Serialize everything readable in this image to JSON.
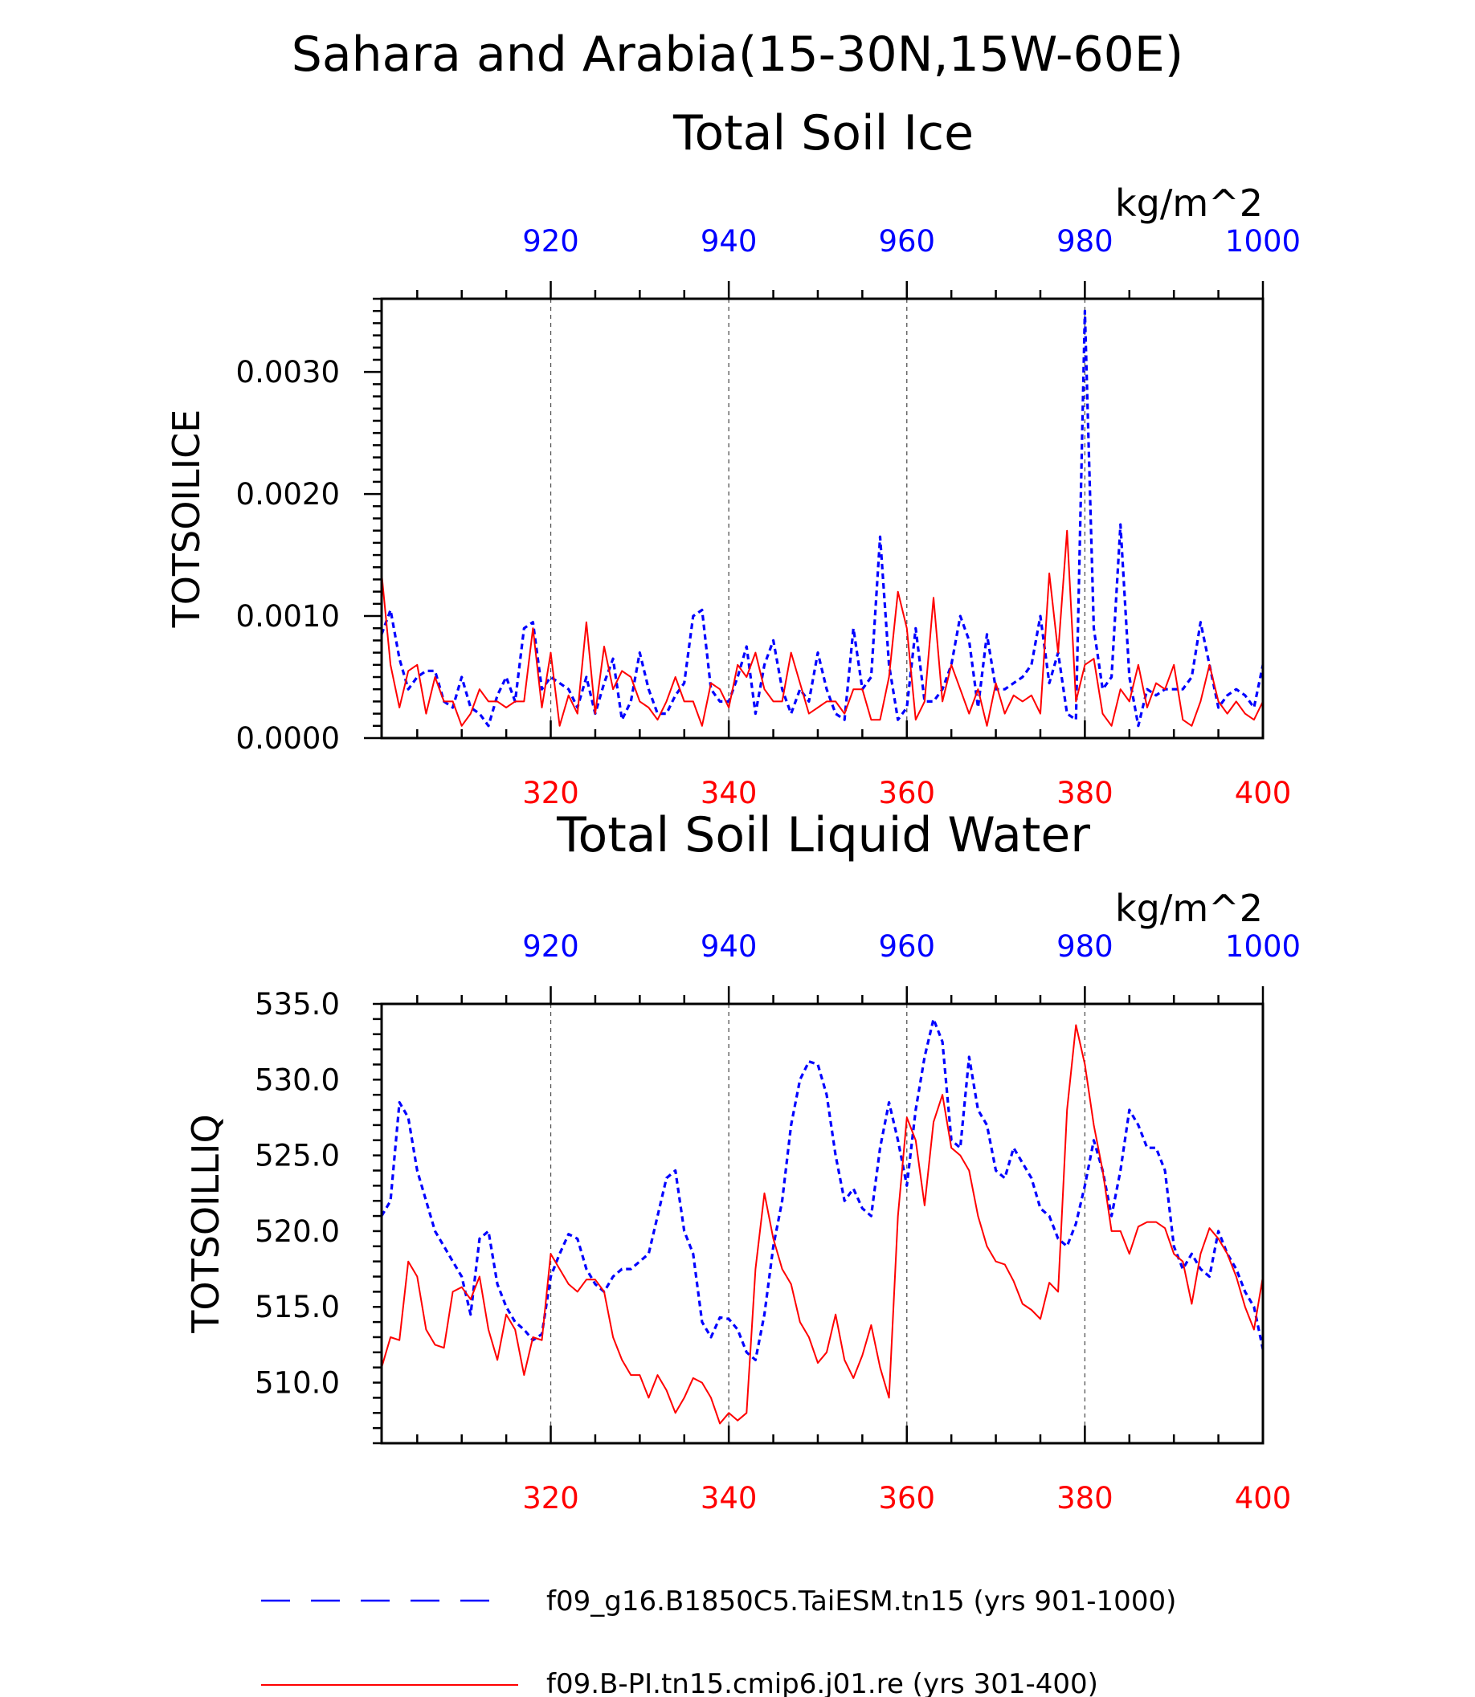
{
  "figure": {
    "title_line1": "Sahara and Arabia(15-30N,15W-60E)",
    "colors": {
      "case_a": "#0000ff",
      "case_b": "#ff0000",
      "grid": "#555555"
    }
  },
  "chart_data": [
    {
      "type": "line",
      "title": "Total Soil Ice",
      "units": "kg/m^2",
      "ylabel": "TOTSOILICE",
      "ylim": [
        0,
        0.0036
      ],
      "ytick_labels": [
        "0.0000",
        "0.0010",
        "0.0020",
        "0.0030"
      ],
      "x_bottom": {
        "range": [
          301,
          400
        ],
        "tick_labels": [
          "320",
          "340",
          "360",
          "380",
          "400"
        ],
        "color": "#ff0000"
      },
      "x_top": {
        "range": [
          901,
          1000
        ],
        "tick_labels": [
          "920",
          "940",
          "960",
          "980",
          "1000"
        ],
        "color": "#0000ff"
      },
      "grid": "vertical dashed at 320, 340, 360, 380",
      "series": [
        {
          "name": "f09_g16.B1850C5.TaiESM.tn15 (yrs 901-1000)",
          "axis": "top",
          "style": "dashed",
          "color": "#0000ff",
          "x_start": 901,
          "values": [
            0.00085,
            0.00105,
            0.00065,
            0.0004,
            0.0005,
            0.00055,
            0.00055,
            0.0003,
            0.00025,
            0.0005,
            0.00025,
            0.0002,
            0.0001,
            0.00035,
            0.0005,
            0.0003,
            0.0009,
            0.00095,
            0.0004,
            0.0005,
            0.00045,
            0.0004,
            0.00025,
            0.0005,
            0.0002,
            0.00045,
            0.00065,
            0.00015,
            0.0003,
            0.0007,
            0.0004,
            0.0002,
            0.0002,
            0.00035,
            0.00045,
            0.001,
            0.00105,
            0.0004,
            0.0003,
            0.0003,
            0.0005,
            0.00075,
            0.0002,
            0.0006,
            0.0008,
            0.0004,
            0.0002,
            0.0004,
            0.0003,
            0.0007,
            0.0004,
            0.0002,
            0.00015,
            0.0009,
            0.0004,
            0.0005,
            0.00165,
            0.0006,
            0.00015,
            0.00025,
            0.0009,
            0.0003,
            0.0003,
            0.0004,
            0.0006,
            0.001,
            0.0008,
            0.00025,
            0.00085,
            0.0004,
            0.0004,
            0.00045,
            0.0005,
            0.0006,
            0.001,
            0.00045,
            0.0007,
            0.0002,
            0.00015,
            0.0035,
            0.0009,
            0.0004,
            0.0005,
            0.00175,
            0.0005,
            0.0001,
            0.0004,
            0.00035,
            0.0004,
            0.0004,
            0.0004,
            0.0005,
            0.00095,
            0.0006,
            0.00025,
            0.00035,
            0.0004,
            0.00035,
            0.00025,
            0.0006
          ]
        },
        {
          "name": "f09.B-PI.tn15.cmip6.j01.re (yrs 301-400)",
          "axis": "bottom",
          "style": "solid",
          "color": "#ff0000",
          "x_start": 301,
          "values": [
            0.00135,
            0.0006,
            0.00025,
            0.00055,
            0.0006,
            0.0002,
            0.0005,
            0.0003,
            0.0003,
            0.0001,
            0.0002,
            0.0004,
            0.0003,
            0.0003,
            0.00025,
            0.0003,
            0.0003,
            0.0009,
            0.00025,
            0.0007,
            0.0001,
            0.00035,
            0.0002,
            0.00095,
            0.0002,
            0.00075,
            0.0004,
            0.00055,
            0.0005,
            0.0003,
            0.00025,
            0.00015,
            0.0003,
            0.0005,
            0.0003,
            0.0003,
            0.0001,
            0.00045,
            0.0004,
            0.00025,
            0.0006,
            0.0005,
            0.0007,
            0.0004,
            0.0003,
            0.0003,
            0.0007,
            0.00045,
            0.0002,
            0.00025,
            0.0003,
            0.0003,
            0.0002,
            0.0004,
            0.0004,
            0.00015,
            0.00015,
            0.0005,
            0.0012,
            0.0009,
            0.00015,
            0.0003,
            0.00115,
            0.0003,
            0.0006,
            0.0004,
            0.0002,
            0.0004,
            0.0001,
            0.00045,
            0.0002,
            0.00035,
            0.0003,
            0.00035,
            0.0002,
            0.00135,
            0.0007,
            0.0017,
            0.0003,
            0.0006,
            0.00065,
            0.0002,
            0.0001,
            0.0004,
            0.0003,
            0.0006,
            0.00025,
            0.00045,
            0.0004,
            0.0006,
            0.00015,
            0.0001,
            0.0003,
            0.0006,
            0.0003,
            0.0002,
            0.0003,
            0.0002,
            0.00015,
            0.0003
          ]
        }
      ]
    },
    {
      "type": "line",
      "title": "Total Soil Liquid Water",
      "units": "kg/m^2",
      "ylabel": "TOTSOILLIQ",
      "ylim": [
        506.0,
        535.0
      ],
      "ytick_labels": [
        "510.0",
        "515.0",
        "520.0",
        "525.0",
        "530.0",
        "535.0"
      ],
      "x_bottom": {
        "range": [
          301,
          400
        ],
        "tick_labels": [
          "320",
          "340",
          "360",
          "380",
          "400"
        ],
        "color": "#ff0000"
      },
      "x_top": {
        "range": [
          901,
          1000
        ],
        "tick_labels": [
          "920",
          "940",
          "960",
          "980",
          "1000"
        ],
        "color": "#0000ff"
      },
      "grid": "vertical dashed at 320, 340, 360, 380",
      "series": [
        {
          "name": "f09_g16.B1850C5.TaiESM.tn15 (yrs 901-1000)",
          "axis": "top",
          "style": "dashed",
          "color": "#0000ff",
          "x_start": 901,
          "values": [
            521,
            522,
            528.5,
            527.5,
            524,
            522,
            520,
            519,
            518,
            517,
            514.5,
            519.5,
            520,
            516.5,
            515,
            514,
            513.5,
            512.8,
            513.2,
            517,
            518.5,
            519.8,
            519.5,
            517.5,
            516.5,
            516,
            517,
            517.5,
            517.5,
            518,
            518.5,
            521,
            523.5,
            524,
            520,
            518.5,
            514,
            513,
            514.3,
            514.2,
            513.5,
            512,
            511.5,
            514.5,
            519,
            522,
            527,
            530,
            531.2,
            531,
            529,
            525,
            522,
            522.8,
            521.5,
            521,
            525.5,
            528.5,
            526,
            523,
            528,
            531.5,
            534,
            532.5,
            526,
            525.5,
            531.5,
            528,
            527,
            524,
            523.5,
            525.5,
            524.5,
            523.5,
            521.5,
            521,
            519.5,
            519,
            520.5,
            523,
            526,
            524,
            521,
            524,
            528,
            527,
            525.5,
            525.5,
            524,
            519,
            517.5,
            518.5,
            517.5,
            517,
            520,
            518.5,
            517.5,
            516,
            515,
            512.2
          ]
        },
        {
          "name": "f09.B-PI.tn15.cmip6.j01.re (yrs 301-400)",
          "axis": "bottom",
          "style": "solid",
          "color": "#ff0000",
          "x_start": 301,
          "values": [
            511,
            513,
            512.8,
            518,
            517,
            513.5,
            512.5,
            512.3,
            516,
            516.3,
            515.5,
            517,
            513.5,
            511.5,
            514.5,
            513.5,
            510.5,
            513,
            512.8,
            518.5,
            517.5,
            516.5,
            516,
            516.8,
            516.8,
            516,
            513,
            511.5,
            510.5,
            510.5,
            509,
            510.5,
            509.5,
            508,
            509,
            510.3,
            510,
            509,
            507.3,
            508,
            507.5,
            508,
            517.5,
            522.5,
            519.5,
            517.5,
            516.5,
            514,
            513,
            511.3,
            512,
            514.5,
            511.5,
            510.3,
            511.8,
            513.8,
            511,
            509,
            521,
            527.5,
            526,
            521.7,
            527.2,
            529,
            525.5,
            525,
            524,
            521,
            519,
            518,
            517.8,
            516.7,
            515.2,
            514.8,
            514.2,
            516.6,
            516,
            528,
            533.6,
            531,
            527,
            524,
            520,
            520,
            518.5,
            520.3,
            520.6,
            520.6,
            520.2,
            518.5,
            518,
            515.2,
            518.5,
            520.2,
            519.5,
            518.5,
            517,
            515,
            513.5,
            517
          ]
        }
      ]
    }
  ],
  "legend": {
    "items": [
      {
        "label": "f09_g16.B1850C5.TaiESM.tn15 (yrs 901-1000)",
        "style": "dashed",
        "color": "#0000ff"
      },
      {
        "label": "f09.B-PI.tn15.cmip6.j01.re (yrs 301-400)",
        "style": "solid",
        "color": "#ff0000"
      }
    ]
  }
}
